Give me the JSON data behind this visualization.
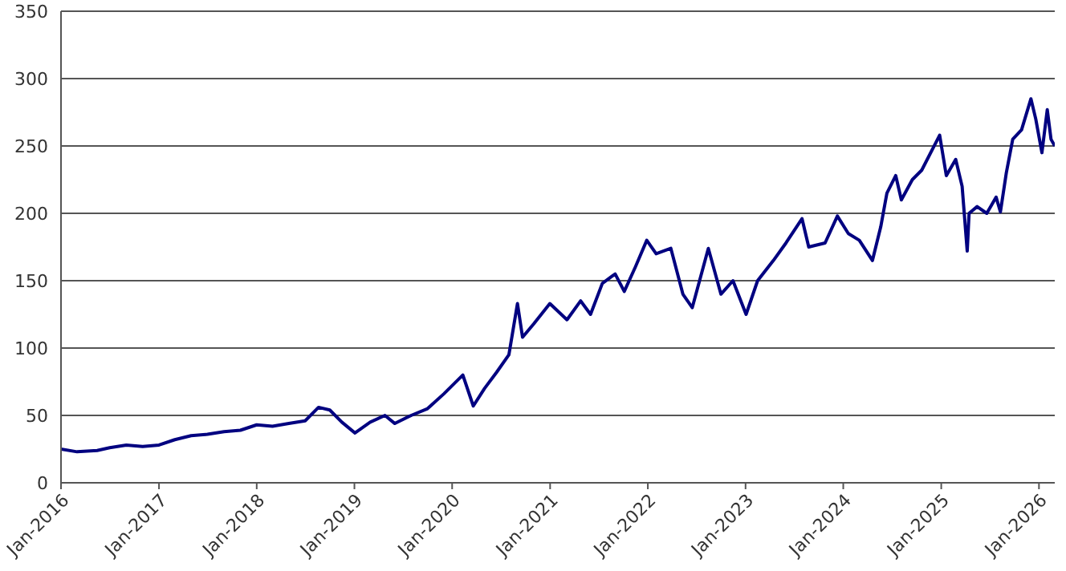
{
  "chart_data": {
    "type": "line",
    "x": [
      "2016-01-01",
      "2016-03-01",
      "2016-05-15",
      "2016-07-01",
      "2016-09-01",
      "2016-11-01",
      "2017-01-01",
      "2017-03-01",
      "2017-05-01",
      "2017-07-01",
      "2017-09-01",
      "2017-11-01",
      "2018-01-01",
      "2018-03-01",
      "2018-05-01",
      "2018-07-01",
      "2018-08-20",
      "2018-10-01",
      "2018-11-15",
      "2019-01-03",
      "2019-03-01",
      "2019-04-25",
      "2019-06-01",
      "2019-08-01",
      "2019-10-01",
      "2019-12-01",
      "2020-02-10",
      "2020-03-20",
      "2020-05-01",
      "2020-06-15",
      "2020-07-31",
      "2020-09-01",
      "2020-09-20",
      "2020-11-01",
      "2020-12-31",
      "2021-03-05",
      "2021-04-25",
      "2021-06-01",
      "2021-07-15",
      "2021-09-01",
      "2021-10-05",
      "2021-11-15",
      "2021-12-28",
      "2022-02-01",
      "2022-03-28",
      "2022-05-12",
      "2022-06-16",
      "2022-08-15",
      "2022-10-01",
      "2022-11-15",
      "2023-01-03",
      "2023-02-15",
      "2023-04-15",
      "2023-06-01",
      "2023-07-31",
      "2023-08-25",
      "2023-10-25",
      "2023-12-10",
      "2024-01-20",
      "2024-03-01",
      "2024-04-19",
      "2024-05-20",
      "2024-06-12",
      "2024-07-15",
      "2024-08-05",
      "2024-09-15",
      "2024-10-20",
      "2024-12-26",
      "2025-01-20",
      "2025-02-24",
      "2025-03-20",
      "2025-04-08",
      "2025-04-15",
      "2025-05-15",
      "2025-06-20",
      "2025-07-25",
      "2025-08-10",
      "2025-09-01",
      "2025-09-25",
      "2025-10-28",
      "2025-12-02",
      "2025-12-20",
      "2026-01-12",
      "2026-02-01",
      "2026-02-15",
      "2026-03-01"
    ],
    "series": [
      {
        "color": "#000080",
        "values": [
          25,
          23,
          24,
          26,
          28,
          27,
          28,
          32,
          35,
          36,
          38,
          39,
          43,
          42,
          44,
          46,
          56,
          54,
          45,
          37,
          45,
          50,
          44,
          50,
          55,
          66,
          80,
          57,
          70,
          82,
          95,
          133,
          108,
          118,
          133,
          121,
          135,
          125,
          148,
          155,
          142,
          160,
          180,
          170,
          174,
          140,
          130,
          174,
          140,
          150,
          125,
          150,
          165,
          178,
          196,
          175,
          178,
          198,
          185,
          180,
          165,
          190,
          215,
          228,
          210,
          225,
          232,
          258,
          228,
          240,
          220,
          172,
          200,
          205,
          200,
          212,
          201,
          230,
          255,
          262,
          285,
          270,
          245,
          277,
          255,
          250
        ]
      }
    ],
    "xlim": [
      "2016-01-01",
      "2026-03-01"
    ],
    "xticks": [
      {
        "value": "2016-01-01",
        "label": "Jan-2016"
      },
      {
        "value": "2017-01-01",
        "label": "Jan-2017"
      },
      {
        "value": "2018-01-01",
        "label": "Jan-2018"
      },
      {
        "value": "2019-01-01",
        "label": "Jan-2019"
      },
      {
        "value": "2020-01-01",
        "label": "Jan-2020"
      },
      {
        "value": "2021-01-01",
        "label": "Jan-2021"
      },
      {
        "value": "2022-01-01",
        "label": "Jan-2022"
      },
      {
        "value": "2023-01-01",
        "label": "Jan-2023"
      },
      {
        "value": "2024-01-01",
        "label": "Jan-2024"
      },
      {
        "value": "2025-01-01",
        "label": "Jan-2025"
      },
      {
        "value": "2026-01-01",
        "label": "Jan-2026"
      }
    ],
    "ylim": [
      0,
      350
    ],
    "yticks": [
      0,
      50,
      100,
      150,
      200,
      250,
      300,
      350
    ],
    "grid": "y",
    "legend": false,
    "marker": "none",
    "line_style": "solid"
  }
}
